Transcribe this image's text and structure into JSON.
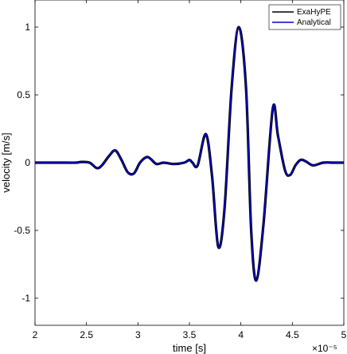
{
  "chart_data": {
    "type": "line",
    "title": "",
    "xlabel": "time [s]",
    "ylabel": "velocity [m/s]",
    "x_exponent": "×10⁻⁵",
    "xlim": [
      2,
      5
    ],
    "ylim": [
      -1.2,
      1.2
    ],
    "x_ticks": [
      2,
      2.5,
      3,
      3.5,
      4,
      4.5,
      5
    ],
    "x_tick_labels": [
      "2",
      "2.5",
      "3",
      "3.5",
      "4",
      "4.5",
      "5"
    ],
    "y_ticks": [
      1,
      0.5,
      0,
      -0.5,
      -1
    ],
    "y_tick_labels": [
      "1",
      "0.5",
      "0",
      "-0.5",
      "-1"
    ],
    "grid": false,
    "legend_position": "top-right",
    "x": [
      2.0,
      2.3,
      2.4,
      2.45,
      2.53,
      2.6,
      2.65,
      2.72,
      2.78,
      2.84,
      2.9,
      2.96,
      3.02,
      3.08,
      3.12,
      3.18,
      3.25,
      3.35,
      3.45,
      3.5,
      3.53,
      3.58,
      3.66,
      3.72,
      3.78,
      3.84,
      3.91,
      3.98,
      4.05,
      4.1,
      4.15,
      4.22,
      4.31,
      4.36,
      4.43,
      4.48,
      4.53,
      4.58,
      4.63,
      4.7,
      4.8,
      4.9,
      5.0
    ],
    "series": [
      {
        "name": "ExaHyPE",
        "color": "#000000",
        "values": [
          0.0,
          0.0,
          0.0,
          0.005,
          0.0,
          -0.04,
          -0.02,
          0.05,
          0.09,
          0.02,
          -0.07,
          -0.08,
          0.0,
          0.04,
          0.03,
          -0.01,
          0.0,
          -0.01,
          0.0,
          0.02,
          0.0,
          -0.02,
          0.21,
          -0.1,
          -0.62,
          -0.35,
          0.55,
          1.0,
          0.55,
          -0.5,
          -0.87,
          -0.45,
          0.4,
          0.2,
          -0.06,
          -0.09,
          -0.02,
          0.02,
          0.01,
          -0.02,
          0.0,
          0.0,
          0.0
        ]
      },
      {
        "name": "Analytical",
        "color": "#0000cc",
        "values": [
          0.0,
          0.0,
          0.0,
          0.005,
          0.0,
          -0.04,
          -0.02,
          0.05,
          0.09,
          0.02,
          -0.07,
          -0.08,
          0.0,
          0.04,
          0.03,
          -0.01,
          0.0,
          -0.01,
          0.0,
          0.02,
          0.0,
          -0.02,
          0.21,
          -0.1,
          -0.62,
          -0.35,
          0.55,
          1.0,
          0.55,
          -0.5,
          -0.87,
          -0.45,
          0.4,
          0.2,
          -0.06,
          -0.09,
          -0.02,
          0.02,
          0.01,
          -0.02,
          0.0,
          0.0,
          0.0
        ]
      }
    ]
  }
}
